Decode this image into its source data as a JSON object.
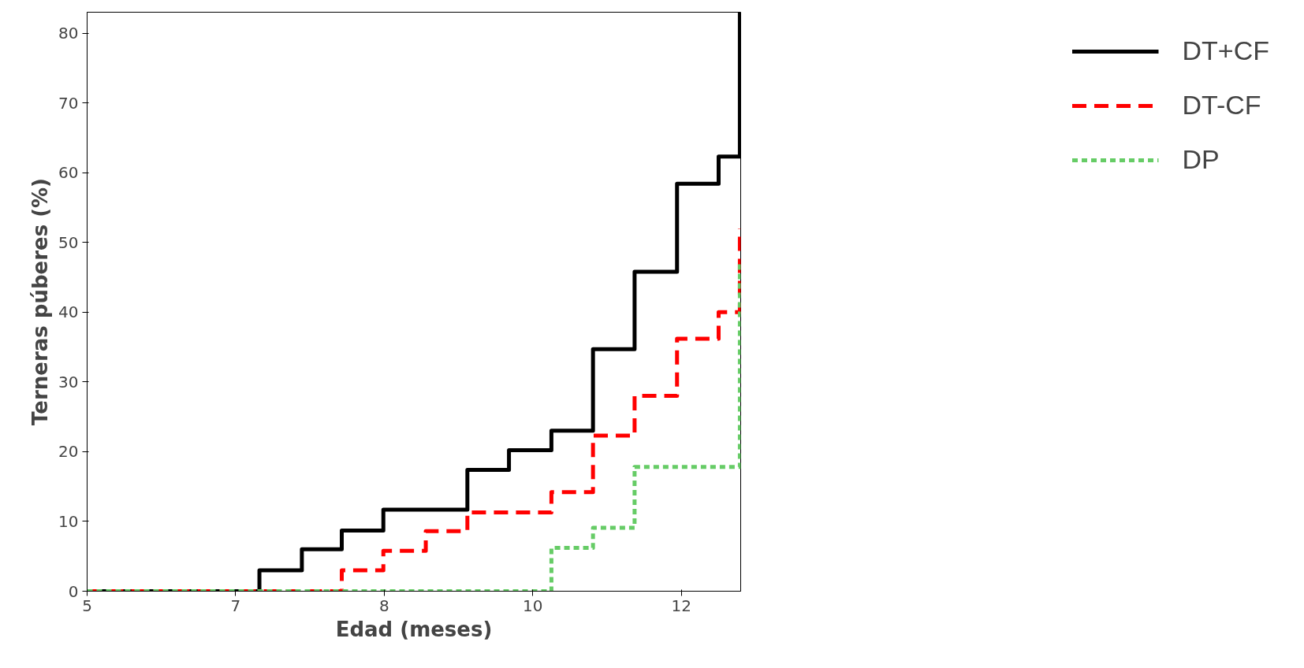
{
  "chart_data": {
    "type": "step",
    "xlabel": "Edad (meses)",
    "ylabel": "Terneras púberes (%)",
    "xlim": [
      5,
      12.7
    ],
    "ylim": [
      0,
      83
    ],
    "xticks": [
      5,
      {
        "value": 6.75,
        "label": "7"
      },
      {
        "value": 8.5,
        "label": "8"
      },
      {
        "value": 10.25,
        "label": "10"
      },
      12
    ],
    "yticks": [
      0,
      10,
      20,
      30,
      40,
      50,
      60,
      70,
      80
    ],
    "grid": false,
    "legend": "right",
    "marker": "none",
    "series": [
      {
        "name": "DT+CF",
        "color": "#000000",
        "line_style": "solid",
        "x": [
          5,
          7.03,
          7.53,
          8.0,
          8.49,
          9.48,
          9.97,
          10.47,
          10.96,
          11.45,
          11.95,
          12.44,
          12.69
        ],
        "values": [
          0,
          3,
          6,
          8.7,
          11.7,
          17.4,
          20.2,
          23,
          34.7,
          45.8,
          58.4,
          62.3,
          83
        ]
      },
      {
        "name": "DT-CF",
        "color": "#ff0000",
        "line_style": "dashed",
        "x": [
          5,
          8.0,
          8.49,
          8.99,
          9.48,
          10.47,
          10.96,
          11.45,
          11.95,
          12.44,
          12.69
        ],
        "values": [
          0,
          3,
          5.8,
          8.6,
          11.3,
          14.2,
          22.3,
          28,
          36.2,
          40,
          52
        ]
      },
      {
        "name": "DP",
        "color": "#66cc66",
        "line_style": "dotted",
        "x": [
          5,
          10.47,
          10.96,
          11.45,
          12.69
        ],
        "values": [
          0,
          6.2,
          9.1,
          17.8,
          47
        ]
      }
    ]
  }
}
